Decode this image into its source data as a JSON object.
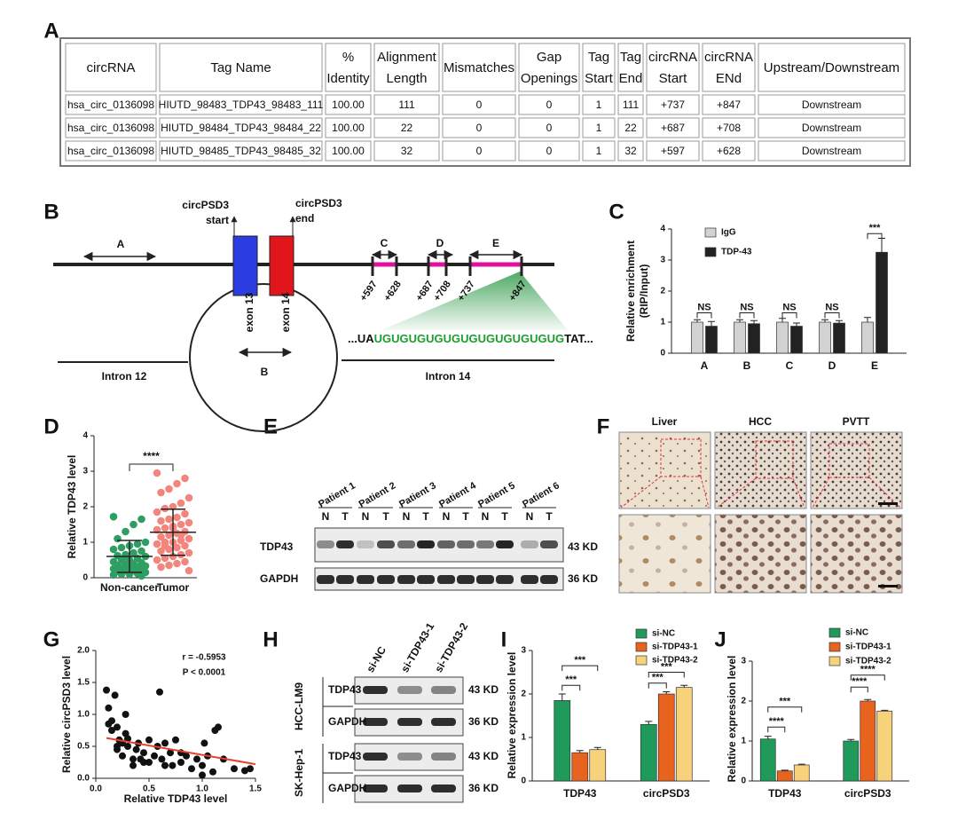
{
  "panel_labels": [
    "A",
    "B",
    "C",
    "D",
    "E",
    "F",
    "G",
    "H",
    "I",
    "J"
  ],
  "table": {
    "header": [
      [
        "circRNA"
      ],
      [
        "Tag Name"
      ],
      [
        "%",
        "Identity"
      ],
      [
        "Alignment",
        "Length"
      ],
      [
        "Mismatches"
      ],
      [
        "Gap",
        "Openings"
      ],
      [
        "Tag",
        "Start"
      ],
      [
        "Tag",
        "End"
      ],
      [
        "circRNA",
        "Start"
      ],
      [
        "circRNA",
        "ENd"
      ],
      [
        "Upstream/Downstream"
      ]
    ],
    "rows": [
      [
        "hsa_circ_0136098",
        "HIUTD_98483_TDP43_98483_111",
        "100.00",
        "111",
        "0",
        "0",
        "1",
        "111",
        "+737",
        "+847",
        "Downstream"
      ],
      [
        "hsa_circ_0136098",
        "HIUTD_98484_TDP43_98484_22",
        "100.00",
        "22",
        "0",
        "0",
        "1",
        "22",
        "+687",
        "+708",
        "Downstream"
      ],
      [
        "hsa_circ_0136098",
        "HIUTD_98485_TDP43_98485_32",
        "100.00",
        "32",
        "0",
        "0",
        "1",
        "32",
        "+597",
        "+628",
        "Downstream"
      ]
    ]
  },
  "diagram": {
    "start_label": [
      "circPSD3",
      "start"
    ],
    "end_label": [
      "circPSD3",
      "end"
    ],
    "regions": [
      "A",
      "B",
      "C",
      "D",
      "E"
    ],
    "exons": [
      "exon 13",
      "exon 14"
    ],
    "positions": [
      "+597",
      "+628",
      "+687",
      "+708",
      "+737",
      "+847"
    ],
    "sequence": [
      "...UA",
      "UGUGUGUGUGUGUGUGUGUGUG",
      "TAT..."
    ],
    "introns": [
      "Intron 12",
      "Intron 14"
    ]
  },
  "chart_data": [
    {
      "type": "bar",
      "categories": [
        "A",
        "B",
        "C",
        "D",
        "E"
      ],
      "ylabel": [
        "Relative enrichment",
        "(RIP/Input)"
      ],
      "ylim": [
        0,
        4
      ],
      "yticks": [
        0,
        1,
        2,
        3,
        4
      ],
      "legend": "upper-left",
      "series": [
        {
          "name": "IgG",
          "color": "#d2d2d2",
          "values": [
            1,
            1,
            1,
            1,
            1
          ],
          "errors": [
            0.08,
            0.08,
            0.12,
            0.08,
            0.15
          ]
        },
        {
          "name": "TDP-43",
          "color": "#222222",
          "values": [
            0.87,
            0.95,
            0.87,
            0.97,
            3.25
          ],
          "errors": [
            0.15,
            0.1,
            0.1,
            0.08,
            0.45
          ]
        }
      ],
      "annotations": [
        "NS",
        "NS",
        "NS",
        "NS",
        "***"
      ]
    },
    {
      "type": "strip",
      "ylabel": "Relative TDP43 level",
      "ylim": [
        0,
        4
      ],
      "yticks": [
        0,
        1,
        2,
        3,
        4
      ],
      "groups": [
        {
          "name": "Non-cancer",
          "color": "#2f9e63",
          "mean": 0.6,
          "sd": 0.45,
          "values": [
            1.72,
            1.65,
            1.5,
            1.3,
            1.1,
            1.0,
            0.95,
            0.9,
            0.85,
            0.8,
            0.75,
            0.7,
            0.65,
            0.62,
            0.6,
            0.55,
            0.5,
            0.5,
            0.45,
            0.42,
            0.4,
            0.38,
            0.35,
            0.33,
            0.3,
            0.3,
            0.28,
            0.25,
            0.22,
            0.2,
            0.2,
            0.18,
            0.15,
            0.12,
            0.1,
            0.1,
            0.08,
            0.05,
            0.4,
            0.6
          ]
        },
        {
          "name": "Tumor",
          "color": "#f4857c",
          "mean": 1.28,
          "sd": 0.65,
          "values": [
            2.95,
            2.8,
            2.65,
            2.5,
            2.4,
            2.25,
            2.1,
            2.0,
            1.95,
            1.85,
            1.8,
            1.7,
            1.65,
            1.6,
            1.55,
            1.5,
            1.45,
            1.4,
            1.35,
            1.3,
            1.25,
            1.2,
            1.15,
            1.1,
            1.05,
            1.0,
            1.0,
            0.95,
            0.9,
            0.85,
            0.8,
            0.75,
            0.7,
            0.65,
            0.6,
            0.55,
            0.5,
            0.45,
            0.4,
            0.35,
            0.3,
            0.2,
            1.2,
            1.4,
            0.9
          ]
        }
      ],
      "annotations": [
        "****"
      ]
    },
    {
      "type": "scatter",
      "xlabel": "Relative TDP43 level",
      "ylabel": "Relative circPSD3 level",
      "xlim": [
        0,
        1.5
      ],
      "xticks": [
        {
          "value": 0,
          "label": "0.0"
        },
        0.5,
        {
          "value": 1,
          "label": "1.0"
        },
        1.5
      ],
      "ylim": [
        0,
        2
      ],
      "yticks": [
        {
          "value": 0,
          "label": "0.0"
        },
        0.5,
        {
          "value": 1,
          "label": "1.0"
        },
        1.5,
        {
          "value": 2,
          "label": "2.0"
        }
      ],
      "color": "#111111",
      "x": [
        0.1,
        0.12,
        0.15,
        0.18,
        0.2,
        0.22,
        0.25,
        0.28,
        0.3,
        0.12,
        0.15,
        0.2,
        0.25,
        0.3,
        0.35,
        0.38,
        0.4,
        0.42,
        0.45,
        0.5,
        0.55,
        0.58,
        0.6,
        0.62,
        0.65,
        0.7,
        0.72,
        0.75,
        0.8,
        0.85,
        0.9,
        0.95,
        1.0,
        1.02,
        1.05,
        1.1,
        1.12,
        1.15,
        1.2,
        1.3,
        1.4,
        1.45,
        0.5,
        0.35,
        0.2,
        0.28,
        0.45,
        0.65,
        0.8,
        1.0
      ],
      "y": [
        1.38,
        1.1,
        0.9,
        1.3,
        0.8,
        0.6,
        0.55,
        1.0,
        0.5,
        0.85,
        0.75,
        0.45,
        0.35,
        0.62,
        0.3,
        0.45,
        0.55,
        0.3,
        0.4,
        0.25,
        0.35,
        0.5,
        1.35,
        0.3,
        0.55,
        0.4,
        0.2,
        0.6,
        0.25,
        0.35,
        0.15,
        0.3,
        0.2,
        0.55,
        0.35,
        0.1,
        0.75,
        0.8,
        0.3,
        0.15,
        0.12,
        0.15,
        0.6,
        0.2,
        0.5,
        0.7,
        0.25,
        0.2,
        0.4,
        0.05
      ],
      "trend_line": {
        "x": [
          0.1,
          1.5
        ],
        "y": [
          0.63,
          0.22
        ],
        "color": "#e8402a"
      },
      "annotations": [
        "r = -0.5953",
        "P < 0.0001"
      ]
    },
    {
      "type": "bar",
      "categories": [
        "TDP43",
        "circPSD3"
      ],
      "ylabel": "Relative expression level",
      "ylim": [
        0,
        3
      ],
      "yticks": [
        0,
        1,
        2,
        3
      ],
      "legend": "upper-right",
      "series": [
        {
          "name": "si-NC",
          "color": "#1f9a5a",
          "values": [
            1.85,
            1.3
          ],
          "errors": [
            0.15,
            0.07
          ]
        },
        {
          "name": "si-TDP43-1",
          "color": "#e8641e",
          "values": [
            0.65,
            2.0
          ],
          "errors": [
            0.05,
            0.05
          ]
        },
        {
          "name": "si-TDP43-2",
          "color": "#f7d27a",
          "values": [
            0.72,
            2.15
          ],
          "errors": [
            0.05,
            0.05
          ]
        }
      ],
      "annotations": [
        "***",
        "***",
        "***",
        "***"
      ]
    },
    {
      "type": "bar",
      "categories": [
        "TDP43",
        "circPSD3"
      ],
      "ylabel": "Relative expression level",
      "ylim": [
        0,
        3
      ],
      "yticks": [
        0,
        1,
        2,
        3
      ],
      "legend": "upper-right",
      "series": [
        {
          "name": "si-NC",
          "color": "#1f9a5a",
          "values": [
            1.05,
            1.0
          ],
          "errors": [
            0.07,
            0.04
          ]
        },
        {
          "name": "si-TDP43-1",
          "color": "#e8641e",
          "values": [
            0.25,
            2.0
          ],
          "errors": [
            0.02,
            0.04
          ]
        },
        {
          "name": "si-TDP43-2",
          "color": "#f7d27a",
          "values": [
            0.4,
            1.75
          ],
          "errors": [
            0.02,
            0.02
          ]
        }
      ],
      "annotations": [
        "****",
        "***",
        "****",
        "****"
      ]
    }
  ],
  "blot_e": {
    "patients": [
      "Patient 1",
      "Patient 2",
      "Patient 3",
      "Patient 4",
      "Patient 5",
      "Patient 6"
    ],
    "lanes": [
      "N",
      "T",
      "N",
      "T",
      "N",
      "T",
      "N",
      "T",
      "N",
      "T",
      "N",
      "T"
    ],
    "proteins": [
      "TDP43",
      "GAPDH"
    ],
    "sizes": [
      "43 KD",
      "36 KD"
    ]
  },
  "histology": {
    "titles": [
      "Liver",
      "HCC",
      "PVTT"
    ]
  },
  "blot_h": {
    "conditions": [
      "si-NC",
      "si-TDP43-1",
      "si-TDP43-2"
    ],
    "cell_lines": [
      "HCC-LM9",
      "SK-Hep-1"
    ],
    "proteins": [
      "TDP43",
      "GAPDH",
      "TDP43",
      "GAPDH"
    ],
    "sizes": [
      "43 KD",
      "36 KD",
      "43 KD",
      "36 KD"
    ]
  }
}
